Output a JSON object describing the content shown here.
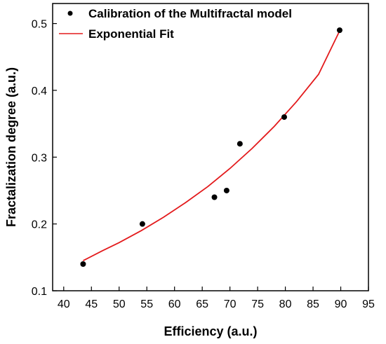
{
  "chart_data": {
    "type": "scatter",
    "title": "",
    "xlabel": "Efficiency (a.u.)",
    "ylabel": "Fractalization degree (a.u.)",
    "xlim": [
      38,
      95
    ],
    "ylim": [
      0.1,
      0.53
    ],
    "xticks": [
      40,
      45,
      50,
      55,
      60,
      65,
      70,
      75,
      80,
      85,
      90,
      95
    ],
    "yticks": [
      0.1,
      0.2,
      0.3,
      0.4,
      0.5
    ],
    "xtick_labels": [
      "40",
      "45",
      "50",
      "55",
      "60",
      "65",
      "70",
      "75",
      "80",
      "85",
      "90",
      "95"
    ],
    "ytick_labels": [
      "0.1",
      "0.2",
      "0.3",
      "0.4",
      "0.5"
    ],
    "grid": false,
    "legend_position": "top",
    "series": [
      {
        "name": "Calibration of the Multifractal model",
        "kind": "scatter",
        "color": "#000000",
        "x": [
          43.5,
          54.2,
          67.2,
          69.4,
          71.8,
          79.8,
          89.8
        ],
        "y": [
          0.14,
          0.2,
          0.24,
          0.25,
          0.32,
          0.36,
          0.49
        ]
      },
      {
        "name": "Exponential Fit",
        "kind": "line",
        "color": "#e31a1c",
        "x": [
          43.5,
          47,
          50,
          54,
          58,
          62,
          66,
          70,
          74,
          78,
          82,
          86,
          89.8
        ],
        "y": [
          0.145,
          0.16,
          0.172,
          0.19,
          0.21,
          0.232,
          0.256,
          0.283,
          0.313,
          0.346,
          0.383,
          0.424,
          0.489
        ]
      }
    ]
  }
}
